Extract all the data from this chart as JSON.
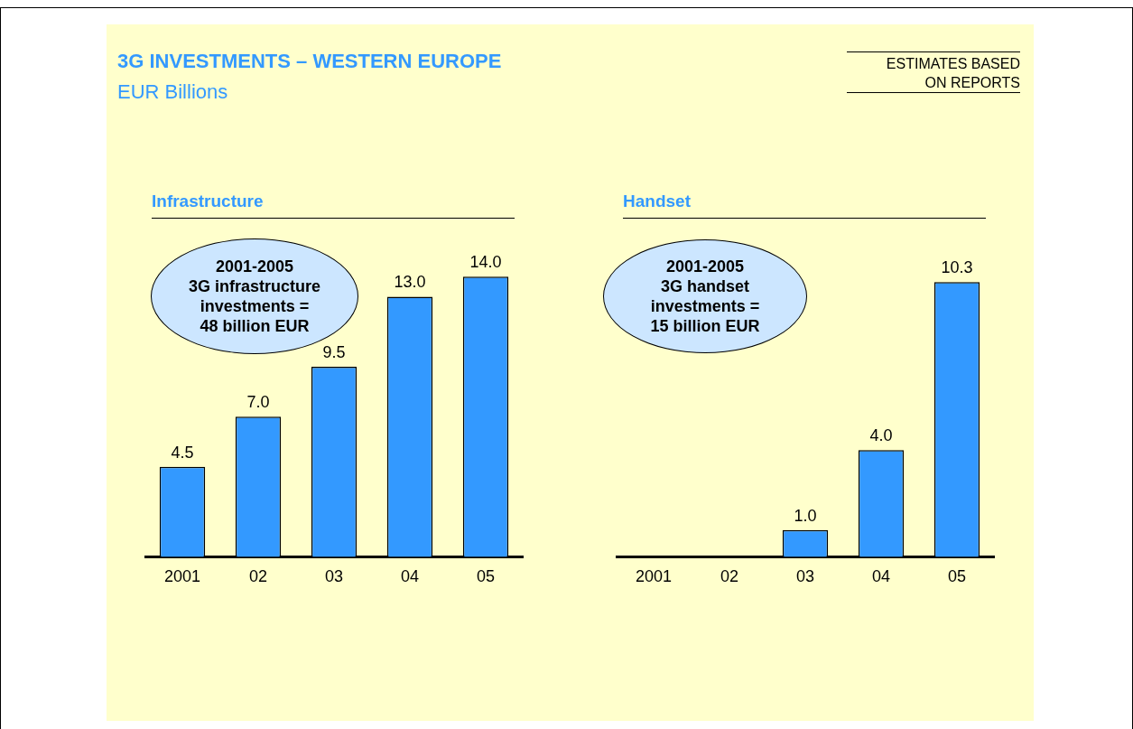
{
  "chart_data": [
    {
      "type": "other",
      "title": "3G INVESTMENTS – WESTERN EUROPE",
      "subtitle": "EUR Billions",
      "annotations": [
        "ESTIMATES BASED\nON REPORTS"
      ]
    },
    {
      "type": "bar",
      "title": "Infrastructure",
      "categories": [
        "2001",
        "02",
        "03",
        "04",
        "05"
      ],
      "values": [
        4.5,
        7.0,
        9.5,
        13.0,
        14.0
      ],
      "value_labels": [
        "4.5",
        "7.0",
        "9.5",
        "13.0",
        "14.0"
      ],
      "color": "#3399ff",
      "grid": false,
      "legend": false,
      "annotations": [
        "2001-2005\n3G infrastructure\ninvestments =\n48 billion EUR"
      ]
    },
    {
      "type": "bar",
      "title": "Handset",
      "categories": [
        "2001",
        "02",
        "03",
        "04",
        "05"
      ],
      "values": [
        null,
        null,
        1.0,
        4.0,
        10.3
      ],
      "value_labels": [
        null,
        null,
        "1.0",
        "4.0",
        "10.3"
      ],
      "color": "#3399ff",
      "grid": false,
      "legend": false,
      "annotations": [
        "2001-2005\n3G handset\ninvestments =\n15 billion EUR"
      ]
    }
  ]
}
